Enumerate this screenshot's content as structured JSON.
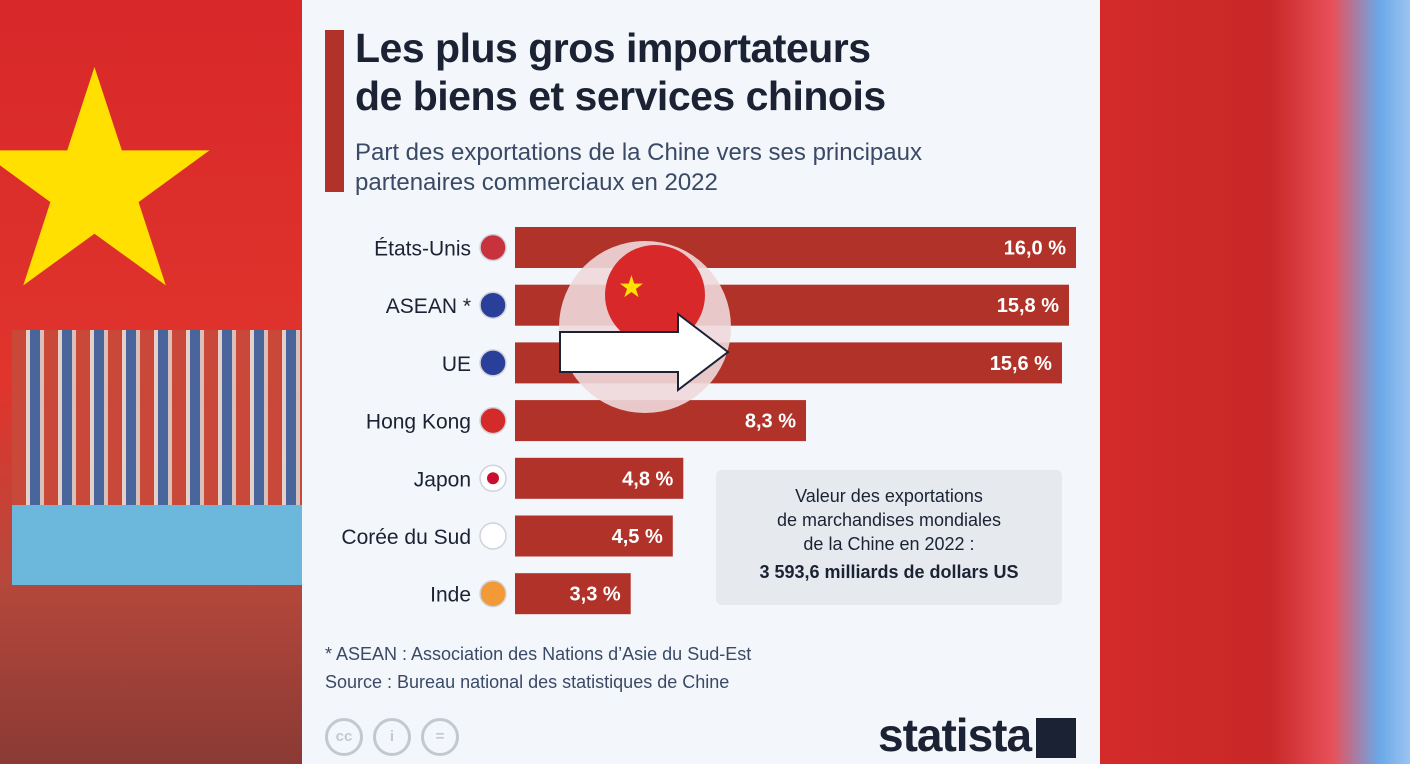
{
  "header": {
    "title_line1": "Les plus gros importateurs",
    "title_line2": "de biens et services chinois",
    "subtitle_line1": "Part des exportations de la Chine vers ses principaux",
    "subtitle_line2": "partenaires commerciaux en 2022"
  },
  "chart_data": {
    "type": "bar",
    "orientation": "horizontal",
    "categories": [
      "États-Unis",
      "ASEAN *",
      "UE",
      "Hong Kong",
      "Japon",
      "Corée du Sud",
      "Inde"
    ],
    "values": [
      16.0,
      15.8,
      15.6,
      8.3,
      4.8,
      4.5,
      3.3
    ],
    "labels": [
      "16,0 %",
      "15,8 %",
      "15,6 %",
      "8,3 %",
      "4,8 %",
      "4,5 %",
      "3,3 %"
    ],
    "flags": [
      "us-flag-icon",
      "asean-flag-icon",
      "eu-flag-icon",
      "hong-kong-flag-icon",
      "japan-flag-icon",
      "south-korea-flag-icon",
      "india-flag-icon"
    ],
    "bar_color": "#b03228",
    "xlim": [
      0,
      16
    ]
  },
  "info_box": {
    "line1": "Valeur des exportations",
    "line2": "de marchandises mondiales",
    "line3": "de la Chine en 2022 :",
    "value": "3 593,6 milliards de dollars US"
  },
  "footer": {
    "note": "* ASEAN : Association des Nations d’Asie du Sud-Est",
    "source": "Source : Bureau national des statistiques de Chine",
    "logo": "statista",
    "license_icons": [
      "cc-icon",
      "attribution-icon",
      "no-derivatives-icon"
    ]
  }
}
